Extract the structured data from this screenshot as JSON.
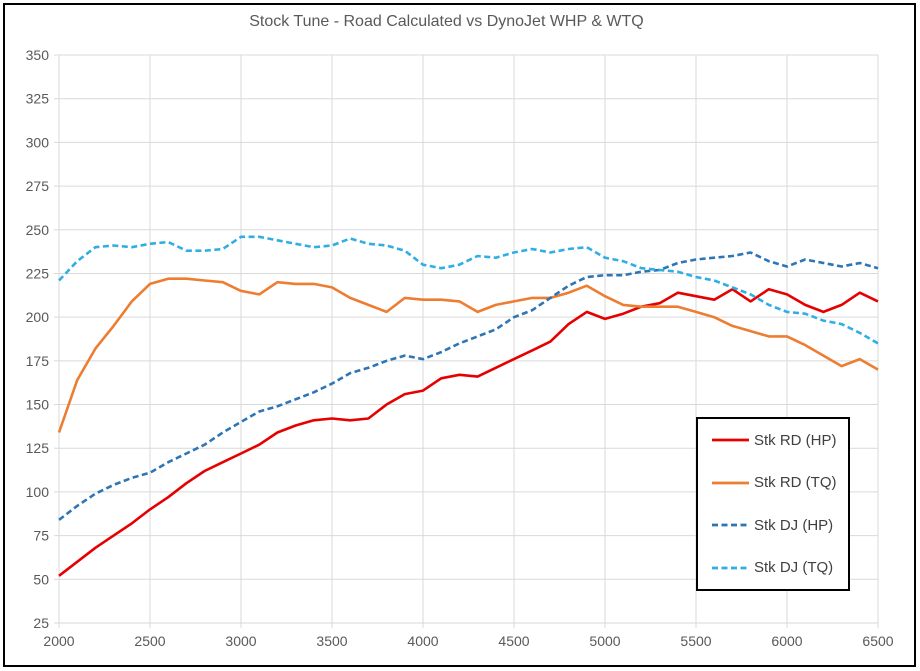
{
  "title": "Stock Tune - Road Calculated vs DynoJet WHP & WTQ",
  "frame": {
    "background": "#FFFFFF",
    "border_color": "#000000",
    "gridline_color": "#D9D9D9",
    "tick_text_color": "#595959",
    "title_color": "#595959",
    "legend_text_color": "#404040",
    "legend_border_color": "#000000"
  },
  "chart_data": {
    "type": "line",
    "title": "Stock Tune - Road Calculated vs DynoJet WHP & WTQ",
    "xlabel": "",
    "ylabel": "",
    "xlim": [
      2000,
      6500
    ],
    "ylim": [
      25,
      350
    ],
    "x_ticks": [
      2000,
      2500,
      3000,
      3500,
      4000,
      4500,
      5000,
      5500,
      6000,
      6500
    ],
    "y_ticks": [
      25,
      50,
      75,
      100,
      125,
      150,
      175,
      200,
      225,
      250,
      275,
      300,
      325,
      350
    ],
    "grid": true,
    "legend_position": "inside-right",
    "x": [
      2000,
      2100,
      2200,
      2300,
      2400,
      2500,
      2600,
      2700,
      2800,
      2900,
      3000,
      3100,
      3200,
      3300,
      3400,
      3500,
      3600,
      3700,
      3800,
      3900,
      4000,
      4100,
      4200,
      4300,
      4400,
      4500,
      4600,
      4700,
      4800,
      4900,
      5000,
      5100,
      5200,
      5300,
      5400,
      5500,
      5600,
      5700,
      5800,
      5900,
      6000,
      6100,
      6200,
      6300,
      6400,
      6500
    ],
    "series": [
      {
        "name": "Stk RD (HP)",
        "color": "#E60000",
        "style": "solid",
        "values": [
          52,
          60,
          68,
          75,
          82,
          90,
          97,
          105,
          112,
          117,
          122,
          127,
          134,
          138,
          141,
          142,
          141,
          142,
          150,
          156,
          158,
          165,
          167,
          166,
          171,
          176,
          181,
          186,
          196,
          203,
          199,
          202,
          206,
          208,
          214,
          212,
          210,
          216,
          209,
          216,
          213,
          207,
          203,
          207,
          214,
          209
        ]
      },
      {
        "name": "Stk RD (TQ)",
        "color": "#ED7D31",
        "style": "solid",
        "values": [
          134,
          164,
          182,
          195,
          209,
          219,
          222,
          222,
          221,
          220,
          215,
          213,
          220,
          219,
          219,
          217,
          211,
          207,
          203,
          211,
          210,
          210,
          209,
          203,
          207,
          209,
          211,
          211,
          214,
          218,
          212,
          207,
          206,
          206,
          206,
          203,
          200,
          195,
          192,
          189,
          189,
          184,
          178,
          172,
          176,
          170
        ]
      },
      {
        "name": "Stk DJ (HP)",
        "color": "#2E75B6",
        "style": "dashed",
        "values": [
          84,
          92,
          99,
          104,
          108,
          111,
          117,
          122,
          127,
          134,
          140,
          146,
          149,
          153,
          157,
          162,
          168,
          171,
          175,
          178,
          176,
          180,
          185,
          189,
          193,
          200,
          204,
          211,
          218,
          223,
          224,
          224,
          226,
          227,
          231,
          233,
          234,
          235,
          237,
          232,
          229,
          233,
          231,
          229,
          231,
          228
        ]
      },
      {
        "name": "Stk DJ (TQ)",
        "color": "#30AEE4",
        "style": "dashed",
        "values": [
          221,
          232,
          240,
          241,
          240,
          242,
          243,
          238,
          238,
          239,
          246,
          246,
          244,
          242,
          240,
          241,
          245,
          242,
          241,
          238,
          230,
          228,
          230,
          235,
          234,
          237,
          239,
          237,
          239,
          240,
          234,
          232,
          228,
          227,
          226,
          223,
          221,
          217,
          213,
          207,
          203,
          202,
          198,
          196,
          191,
          185
        ]
      }
    ]
  }
}
